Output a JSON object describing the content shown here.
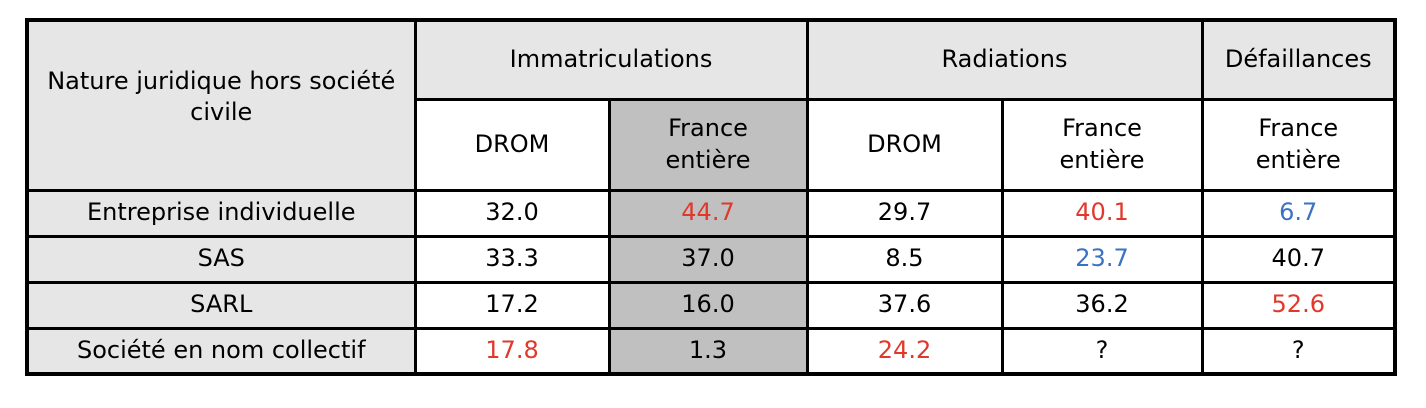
{
  "table": {
    "corner": "Nature juridique hors société civile",
    "groups": [
      {
        "label": "Immatriculations",
        "span": 2
      },
      {
        "label": "Radiations",
        "span": 2
      },
      {
        "label": "Défaillances",
        "span": 1
      }
    ],
    "subheaders": [
      {
        "label": "DROM"
      },
      {
        "label": "France entière",
        "shade": "#c0c0c0"
      },
      {
        "label": "DROM"
      },
      {
        "label": "France entière"
      },
      {
        "label": "France entière"
      }
    ],
    "rows": [
      {
        "label": "Entreprise individuelle",
        "cells": [
          {
            "text": "32.0"
          },
          {
            "text": "44.7",
            "color": "#e0392c"
          },
          {
            "text": "29.7"
          },
          {
            "text": "40.1",
            "color": "#e0392c"
          },
          {
            "text": "6.7",
            "color": "#3b72c2"
          }
        ]
      },
      {
        "label": "SAS",
        "cells": [
          {
            "text": "33.3"
          },
          {
            "text": "37.0"
          },
          {
            "text": "8.5"
          },
          {
            "text": "23.7",
            "color": "#3b72c2"
          },
          {
            "text": "40.7"
          }
        ]
      },
      {
        "label": "SARL",
        "cells": [
          {
            "text": "17.2"
          },
          {
            "text": "16.0"
          },
          {
            "text": "37.6"
          },
          {
            "text": "36.2"
          },
          {
            "text": "52.6",
            "color": "#e0392c"
          }
        ]
      },
      {
        "label": "Société en nom collectif",
        "cells": [
          {
            "text": "17.8",
            "color": "#e0392c"
          },
          {
            "text": "1.3"
          },
          {
            "text": "24.2",
            "color": "#e0392c"
          },
          {
            "text": "?"
          },
          {
            "text": "?"
          }
        ]
      }
    ]
  }
}
